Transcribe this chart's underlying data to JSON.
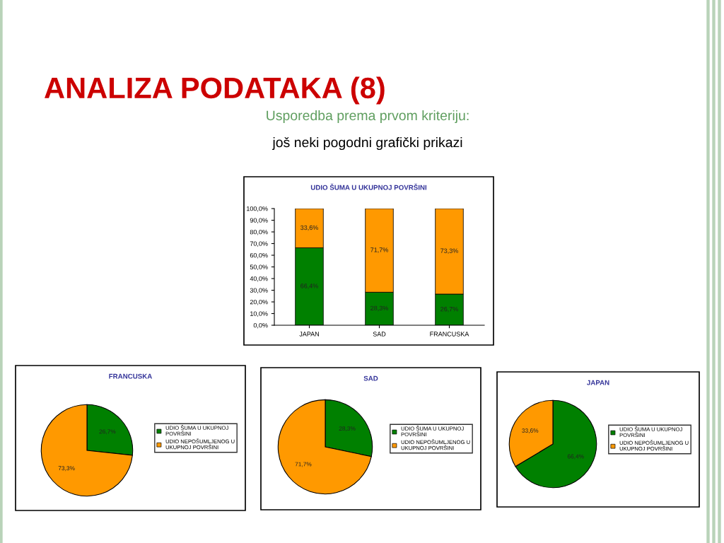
{
  "chart_data": [
    {
      "type": "bar",
      "title": "UDIO ŠUMA U UKUPNOJ POVRŠINI",
      "annotations": [
        "ANALIZA PODATAKA (8)",
        "Usporedba prema prvom kriteriju:",
        "još neki pogodni grafički prikazi"
      ],
      "categories": [
        "JAPAN",
        "SAD",
        "FRANCUSKA"
      ],
      "stacked": true,
      "series": [
        {
          "color": "#008000",
          "values": [
            66.4,
            28.3,
            26.7
          ],
          "value_labels": [
            "66,4%",
            "28,3%",
            "26,7%"
          ]
        },
        {
          "color": "#ff9900",
          "values": [
            33.6,
            71.7,
            73.3
          ],
          "value_labels": [
            "33,6%",
            "71,7%",
            "73,3%"
          ]
        }
      ],
      "ylim": [
        0,
        100
      ],
      "yticks": [
        {
          "value": 0,
          "label": "0,0%"
        },
        {
          "value": 10,
          "label": "10,0%"
        },
        {
          "value": 20,
          "label": "20,0%"
        },
        {
          "value": 30,
          "label": "30,0%"
        },
        {
          "value": 40,
          "label": "40,0%"
        },
        {
          "value": 50,
          "label": "50,0%"
        },
        {
          "value": 60,
          "label": "60,0%"
        },
        {
          "value": 70,
          "label": "70,0%"
        },
        {
          "value": 80,
          "label": "80,0%"
        },
        {
          "value": 90,
          "label": "90,0%"
        },
        {
          "value": 100,
          "label": "100,0%"
        }
      ],
      "grid": false,
      "legend": false
    },
    {
      "type": "pie",
      "title": "FRANCUSKA",
      "categories": [
        "UDIO ŠUMA U UKUPNOJ POVRŠINI",
        "UDIO NEPOŠUMLJENOG U UKUPNOJ POVRŠINI"
      ],
      "values": [
        26.7,
        73.3
      ],
      "colors": [
        "#008000",
        "#ff9900"
      ],
      "value_labels": [
        "26,7%",
        "73,3%"
      ],
      "legend": "right"
    },
    {
      "type": "pie",
      "title": "SAD",
      "categories": [
        "UDIO ŠUMA U UKUPNOJ POVRŠINI",
        "UDIO NEPOŠUMLJENOG U UKUPNOJ POVRŠINI"
      ],
      "values": [
        28.3,
        71.7
      ],
      "colors": [
        "#008000",
        "#ff9900"
      ],
      "value_labels": [
        "28,3%",
        "71,7%"
      ],
      "legend": "right"
    },
    {
      "type": "pie",
      "title": "JAPAN",
      "categories": [
        "UDIO ŠUMA U UKUPNOJ POVRŠINI",
        "UDIO NEPOŠUMLJENOG U UKUPNOJ POVRŠINI"
      ],
      "values": [
        66.4,
        33.6
      ],
      "colors": [
        "#008000",
        "#ff9900"
      ],
      "value_labels": [
        "66,4%",
        "33,6%"
      ],
      "legend": "right"
    }
  ]
}
